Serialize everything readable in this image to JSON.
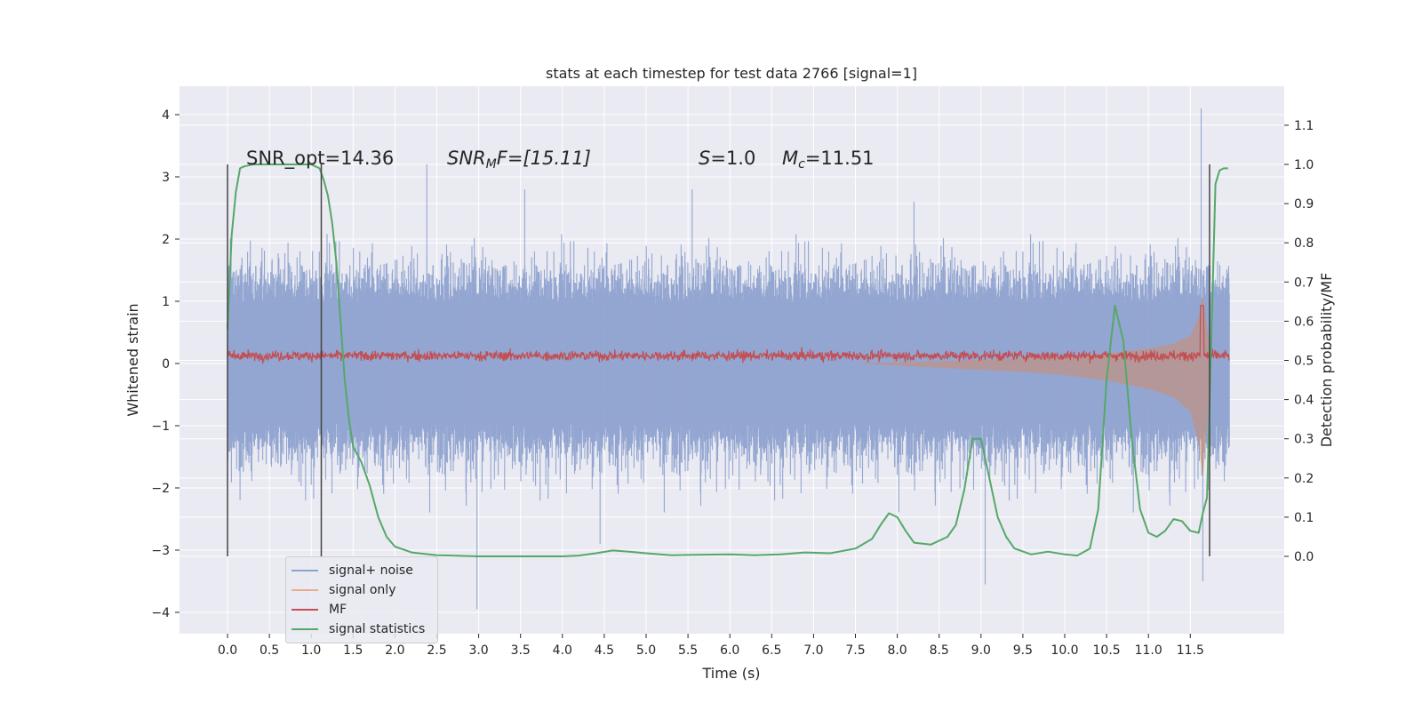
{
  "chart_data": {
    "type": "line",
    "title": "stats at each timestep for test data 2766 [signal=1]",
    "xlabel": "Time (s)",
    "ylabel_left": "Whitened strain",
    "ylabel_right": "Detection probability/MF",
    "xlim": [
      -0.58,
      12.6
    ],
    "ylim_left": [
      -4.4,
      4.45
    ],
    "ylim_right": [
      -0.23,
      1.18
    ],
    "grid": true,
    "legend_position": "lower-left",
    "x_ticks": [
      "0.0",
      "0.5",
      "1.0",
      "1.5",
      "2.0",
      "2.5",
      "3.0",
      "3.5",
      "4.0",
      "4.5",
      "5.0",
      "5.5",
      "6.0",
      "6.5",
      "7.0",
      "7.5",
      "8.0",
      "8.5",
      "9.0",
      "9.5",
      "10.0",
      "10.5",
      "11.0",
      "11.5"
    ],
    "y_ticks_left": [
      "4",
      "3",
      "2",
      "1",
      "0",
      "−1",
      "−2",
      "−3",
      "−4"
    ],
    "y_ticks_right": [
      "1.1",
      "1.0",
      "0.9",
      "0.8",
      "0.7",
      "0.6",
      "0.5",
      "0.4",
      "0.3",
      "0.2",
      "0.1",
      "0.0"
    ],
    "annotations": {
      "snr_opt": "SNR_opt=14.36",
      "snr_mf_name": "SNR",
      "snr_mf_sub": "M",
      "snr_mf_rest": "F=[15.11]",
      "s_name": "S",
      "s_rest": "=1.0",
      "mc_name": "M",
      "mc_sub": "c",
      "mc_rest": "=11.51"
    },
    "vertical_lines": [
      {
        "x": 0.0,
        "y_range": [
          -3.1,
          3.2
        ]
      },
      {
        "x": 1.12,
        "y_range": [
          -3.1,
          3.2
        ]
      },
      {
        "x": 11.73,
        "y_range": [
          -3.1,
          3.2
        ]
      }
    ],
    "series": [
      {
        "name": "signal+ noise",
        "color": "#4c72b0",
        "axis": "left",
        "style": "dense noise band",
        "envelope_low": -1.4,
        "envelope_high": 1.6,
        "extreme_min": -3.95,
        "extreme_max": 4.1,
        "spikes": [
          [
            2.38,
            3.2
          ],
          [
            2.98,
            -3.95
          ],
          [
            0.15,
            -2.2
          ],
          [
            5.55,
            2.8
          ],
          [
            8.2,
            2.6
          ],
          [
            9.05,
            -3.55
          ],
          [
            11.63,
            4.1
          ],
          [
            11.65,
            -3.5
          ],
          [
            4.45,
            -2.9
          ],
          [
            3.55,
            2.8
          ]
        ]
      },
      {
        "name": "signal only",
        "color": "#dd8452",
        "axis": "left",
        "style": "chirp envelope",
        "envelope": [
          [
            7.5,
            0.0
          ],
          [
            8.5,
            0.04
          ],
          [
            9.5,
            0.08
          ],
          [
            10.0,
            0.11
          ],
          [
            10.5,
            0.16
          ],
          [
            11.0,
            0.24
          ],
          [
            11.3,
            0.32
          ],
          [
            11.5,
            0.45
          ],
          [
            11.6,
            0.75
          ],
          [
            11.65,
            1.1
          ],
          [
            11.7,
            0.6
          ],
          [
            11.75,
            0.0
          ]
        ]
      },
      {
        "name": "MF",
        "color": "#c44e52",
        "axis": "right",
        "style": "noisy baseline",
        "baseline": 0.5,
        "spread": 0.018,
        "peak": [
          11.64,
          0.64
        ]
      },
      {
        "name": "signal statistics",
        "color": "#55a868",
        "axis": "right",
        "x": [
          0.0,
          0.05,
          0.1,
          0.15,
          0.2,
          0.3,
          0.4,
          0.5,
          0.6,
          0.7,
          0.8,
          0.9,
          1.0,
          1.05,
          1.1,
          1.15,
          1.2,
          1.25,
          1.3,
          1.35,
          1.4,
          1.45,
          1.5,
          1.6,
          1.7,
          1.8,
          1.9,
          2.0,
          2.2,
          2.5,
          3.0,
          3.5,
          4.0,
          4.2,
          4.4,
          4.6,
          4.8,
          5.0,
          5.3,
          5.6,
          6.0,
          6.3,
          6.6,
          6.9,
          7.2,
          7.5,
          7.7,
          7.8,
          7.9,
          8.0,
          8.1,
          8.2,
          8.4,
          8.6,
          8.7,
          8.8,
          8.9,
          9.0,
          9.1,
          9.2,
          9.3,
          9.4,
          9.6,
          9.8,
          10.0,
          10.15,
          10.3,
          10.4,
          10.5,
          10.6,
          10.7,
          10.8,
          10.9,
          11.0,
          11.1,
          11.2,
          11.3,
          11.4,
          11.5,
          11.6,
          11.65,
          11.7,
          11.75,
          11.8,
          11.85,
          11.9,
          11.95
        ],
        "y": [
          0.58,
          0.82,
          0.93,
          0.99,
          0.995,
          1.0,
          1.0,
          1.0,
          1.0,
          1.0,
          1.0,
          1.0,
          1.0,
          0.995,
          0.99,
          0.96,
          0.92,
          0.85,
          0.75,
          0.6,
          0.45,
          0.35,
          0.28,
          0.24,
          0.18,
          0.1,
          0.05,
          0.025,
          0.01,
          0.003,
          0.0,
          0.0,
          0.0,
          0.002,
          0.008,
          0.015,
          0.012,
          0.008,
          0.003,
          0.004,
          0.005,
          0.003,
          0.005,
          0.01,
          0.008,
          0.02,
          0.045,
          0.08,
          0.11,
          0.1,
          0.065,
          0.035,
          0.03,
          0.05,
          0.08,
          0.17,
          0.3,
          0.3,
          0.2,
          0.1,
          0.05,
          0.02,
          0.005,
          0.012,
          0.005,
          0.002,
          0.02,
          0.12,
          0.45,
          0.64,
          0.55,
          0.3,
          0.12,
          0.06,
          0.05,
          0.065,
          0.095,
          0.09,
          0.065,
          0.06,
          0.11,
          0.15,
          0.55,
          0.95,
          0.985,
          0.99,
          0.99
        ]
      }
    ]
  }
}
